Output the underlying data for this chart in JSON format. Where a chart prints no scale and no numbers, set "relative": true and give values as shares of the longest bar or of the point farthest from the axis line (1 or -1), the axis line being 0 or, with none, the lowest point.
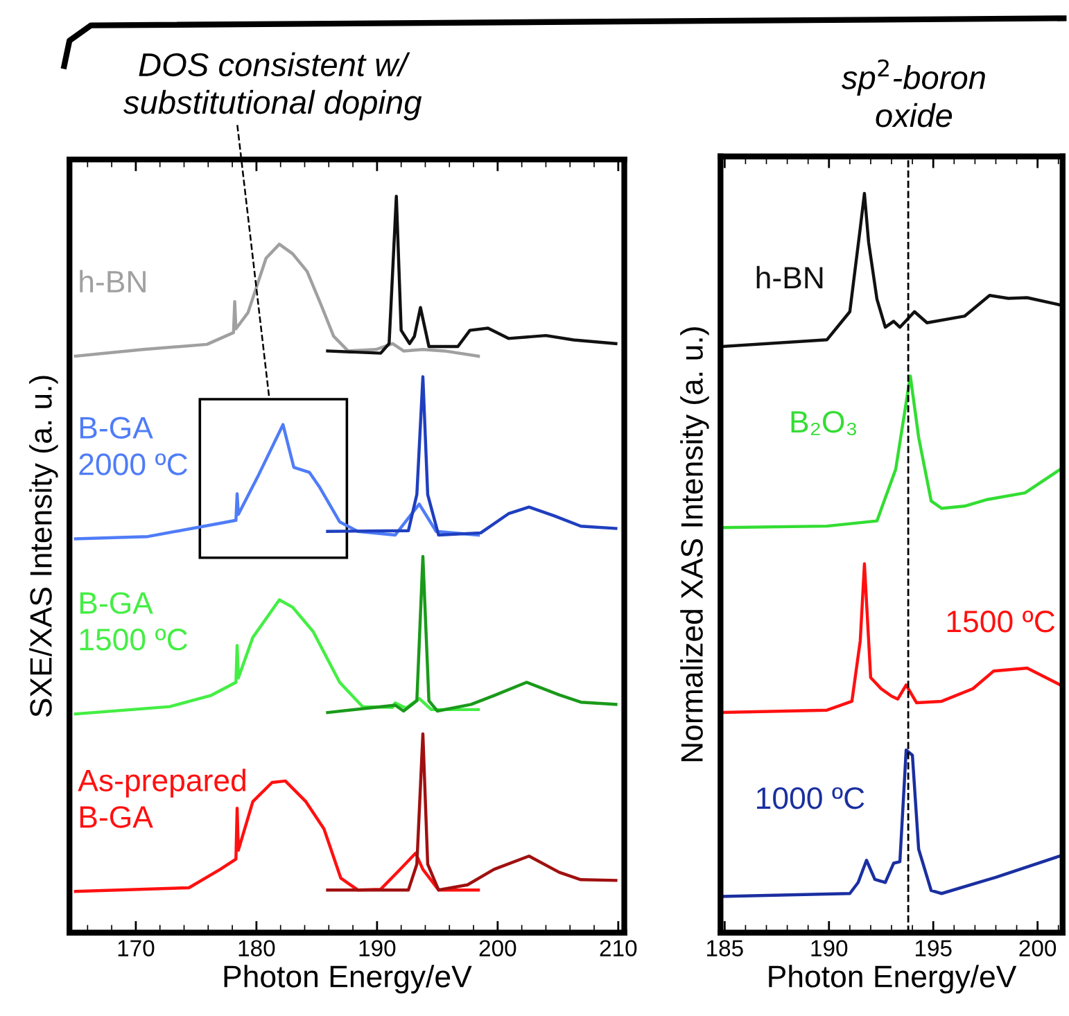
{
  "chart_data": [
    {
      "type": "line",
      "relative": true,
      "xlabel": "Photon Energy/eV",
      "ylabel": "SXE/XAS Intensity (a. u.)",
      "xlim": [
        164.5,
        210.5
      ],
      "xticks": [
        170,
        180,
        190,
        200,
        210
      ],
      "tick_labels": "x",
      "line_style": "solid",
      "annotations": [
        "DOS consistent w/\nsubstitutional doping"
      ],
      "series": [
        {
          "name": "h-BN",
          "color": "#a0a0a0",
          "x": [
            165,
            170.6,
            175.9,
            178.1,
            178.2,
            178.3,
            179.3,
            180.8,
            181.9,
            183.0,
            184.2,
            185.3,
            186.4,
            187.6,
            189.9,
            191.3,
            192.2,
            193.8,
            195.6,
            198.4
          ],
          "values": [
            0.783,
            0.792,
            0.799,
            0.815,
            0.857,
            0.82,
            0.842,
            0.916,
            0.935,
            0.922,
            0.898,
            0.855,
            0.81,
            0.79,
            0.792,
            0.8,
            0.79,
            0.792,
            0.79,
            0.783
          ]
        },
        {
          "color": "#111111",
          "x": [
            185.9,
            190.3,
            191.0,
            191.6,
            192.0,
            192.7,
            193.1,
            193.6,
            194.3,
            196.7,
            197.7,
            199.2,
            200.9,
            204.0,
            206.3,
            209.8
          ],
          "values": [
            0.79,
            0.787,
            0.8,
            1.0,
            0.818,
            0.8,
            0.81,
            0.849,
            0.796,
            0.796,
            0.818,
            0.821,
            0.807,
            0.811,
            0.805,
            0.8
          ]
        },
        {
          "name": "B-GA\n2000 ºC",
          "color": "#4f7cf7",
          "x": [
            165,
            171.0,
            177.0,
            178.3,
            178.4,
            178.5,
            180.1,
            182.2,
            183.1,
            184.4,
            185.2,
            186.9,
            188.4,
            191.5,
            193.5,
            194.9,
            198.4
          ],
          "values": [
            0.535,
            0.538,
            0.556,
            0.56,
            0.596,
            0.568,
            0.619,
            0.69,
            0.632,
            0.625,
            0.606,
            0.558,
            0.545,
            0.54,
            0.582,
            0.545,
            0.54
          ]
        },
        {
          "color": "#1f3fbf",
          "x": [
            185.9,
            192.6,
            193.3,
            193.8,
            194.2,
            195.1,
            198.6,
            200.9,
            202.6,
            204.7,
            206.9,
            209.8
          ],
          "values": [
            0.545,
            0.546,
            0.595,
            0.755,
            0.595,
            0.54,
            0.543,
            0.569,
            0.578,
            0.566,
            0.552,
            0.549
          ]
        },
        {
          "name": "B-GA\n1500 ºC",
          "color": "#44ee44",
          "x": [
            165,
            172.8,
            176.2,
            178.3,
            178.4,
            178.5,
            179.7,
            181.9,
            183.0,
            184.7,
            186.9,
            188.8,
            191.3,
            191.5,
            192.4,
            193.5,
            194.5,
            198.4
          ],
          "values": [
            0.297,
            0.307,
            0.322,
            0.34,
            0.39,
            0.346,
            0.401,
            0.452,
            0.442,
            0.409,
            0.34,
            0.307,
            0.306,
            0.312,
            0.305,
            0.318,
            0.303,
            0.303
          ]
        },
        {
          "color": "#1a9a1a",
          "x": [
            185.9,
            191.5,
            192.2,
            193.3,
            193.8,
            194.3,
            195.0,
            197.8,
            199.7,
            202.4,
            205.1,
            206.9,
            209.8
          ],
          "values": [
            0.299,
            0.309,
            0.301,
            0.315,
            0.511,
            0.315,
            0.301,
            0.31,
            0.322,
            0.34,
            0.323,
            0.313,
            0.31
          ]
        },
        {
          "name": "As-prepared\nB-GA",
          "color": "#ff1010",
          "x": [
            165,
            174.4,
            177.0,
            178.3,
            178.4,
            178.5,
            179.7,
            181.3,
            182.4,
            184.1,
            185.6,
            187.0,
            188.4,
            190.3,
            191.8,
            193.2,
            193.8,
            195.1,
            198.4
          ],
          "values": [
            0.056,
            0.061,
            0.086,
            0.1,
            0.169,
            0.112,
            0.178,
            0.204,
            0.206,
            0.178,
            0.141,
            0.074,
            0.058,
            0.059,
            0.084,
            0.108,
            0.086,
            0.058,
            0.058
          ]
        },
        {
          "color": "#a01010",
          "x": [
            185.9,
            192.6,
            193.3,
            193.8,
            194.2,
            195.1,
            197.5,
            199.7,
            202.6,
            205.1,
            206.9,
            209.8
          ],
          "values": [
            0.058,
            0.058,
            0.093,
            0.27,
            0.093,
            0.058,
            0.065,
            0.086,
            0.104,
            0.082,
            0.072,
            0.071
          ]
        }
      ]
    },
    {
      "type": "line",
      "relative": true,
      "xlabel": "Photon Energy/eV",
      "ylabel": "Normalized XAS Intensity (a. u.)",
      "xlim": [
        184.8,
        201.2
      ],
      "xticks": [
        185,
        190,
        195,
        200
      ],
      "tick_labels": "x",
      "line_style": "solid",
      "annotations": [
        "sp$^{2}$-boron\noxide"
      ],
      "ref_lines": [
        {
          "axis": "x",
          "value": 193.8,
          "color": "#000000",
          "line_style": "dashed"
        }
      ],
      "series": [
        {
          "name": "h-BN",
          "color": "#111111",
          "x": [
            184.9,
            189.9,
            191.0,
            191.5,
            191.7,
            191.9,
            192.3,
            192.7,
            193.1,
            193.4,
            194.1,
            194.7,
            196.5,
            197.7,
            198.6,
            199.5,
            201.1
          ],
          "values": [
            0.793,
            0.802,
            0.84,
            0.953,
            1.0,
            0.934,
            0.857,
            0.819,
            0.827,
            0.819,
            0.84,
            0.825,
            0.834,
            0.862,
            0.858,
            0.859,
            0.849
          ]
        },
        {
          "name": "B₂O₃",
          "color": "#33dd33",
          "x": [
            184.9,
            189.9,
            192.3,
            193.2,
            193.9,
            194.3,
            194.9,
            195.4,
            196.5,
            197.6,
            199.4,
            201.1
          ],
          "values": [
            0.548,
            0.55,
            0.557,
            0.627,
            0.753,
            0.67,
            0.584,
            0.574,
            0.577,
            0.586,
            0.595,
            0.627
          ]
        },
        {
          "name": "1500 ºC",
          "color": "#ff1010",
          "x": [
            184.9,
            189.9,
            191.1,
            191.5,
            191.7,
            192.0,
            192.5,
            193.0,
            193.3,
            193.7,
            194.2,
            195.4,
            196.9,
            197.9,
            199.5,
            201.1
          ],
          "values": [
            0.298,
            0.301,
            0.313,
            0.395,
            0.499,
            0.345,
            0.33,
            0.32,
            0.316,
            0.335,
            0.311,
            0.313,
            0.33,
            0.354,
            0.358,
            0.335
          ]
        },
        {
          "name": "1000 ºC",
          "color": "#1a2fa0",
          "x": [
            184.9,
            191.0,
            191.4,
            191.8,
            192.2,
            192.7,
            193.1,
            193.4,
            193.7,
            194.0,
            194.3,
            194.9,
            195.4,
            198.0,
            201.1
          ],
          "values": [
            0.049,
            0.053,
            0.068,
            0.098,
            0.072,
            0.068,
            0.094,
            0.096,
            0.247,
            0.24,
            0.113,
            0.057,
            0.053,
            0.075,
            0.104
          ]
        }
      ]
    }
  ]
}
